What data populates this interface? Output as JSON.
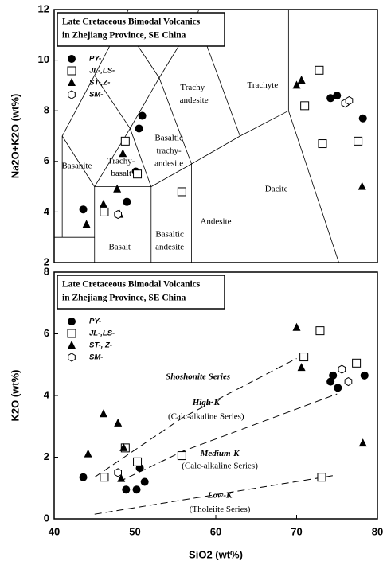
{
  "chart_data": [
    {
      "type": "scatter",
      "ylabel": "Na2O+K2O (wt%)",
      "xlim": [
        40,
        80
      ],
      "ylim": [
        2,
        12
      ],
      "yticks": [
        2,
        4,
        6,
        8,
        10,
        12
      ],
      "legend_title": [
        "Late Cretaceous Bimodal Volcanics",
        "in Zhejiang Province, SE China"
      ],
      "annotations": [
        [
          "Basanite"
        ],
        [
          "Trachy-",
          "basalt"
        ],
        [
          "Basaltic",
          "trachy-",
          "andesite"
        ],
        [
          "Trachy-",
          "andesite"
        ],
        [
          "Trachyte"
        ],
        [
          "Dacite"
        ],
        [
          "Andesite"
        ],
        [
          "Basaltic",
          "andesite"
        ],
        [
          "Basalt"
        ]
      ],
      "series": [
        {
          "name": "PY-",
          "marker": "circle",
          "color": "#000000",
          "x": [
            43.6,
            50.5,
            50.9,
            50.1,
            49.0,
            74.2,
            75.0,
            78.2
          ],
          "values": [
            4.1,
            7.3,
            7.8,
            5.6,
            4.4,
            8.5,
            8.6,
            7.7
          ]
        },
        {
          "name": "JL-,LS-",
          "marker": "square",
          "color": "#000000",
          "x": [
            46.2,
            48.8,
            50.3,
            55.8,
            71.0,
            72.8,
            73.2,
            77.6
          ],
          "values": [
            4.0,
            6.8,
            5.5,
            4.8,
            8.2,
            9.6,
            6.7,
            6.8
          ]
        },
        {
          "name": "ST-,Z-",
          "marker": "triangle",
          "color": "#000000",
          "x": [
            44.0,
            46.1,
            47.8,
            48.1,
            48.5,
            70.0,
            70.6,
            78.1
          ],
          "values": [
            3.5,
            4.3,
            4.9,
            3.9,
            6.3,
            9.0,
            9.2,
            5.0
          ]
        },
        {
          "name": "SM-",
          "marker": "hexagon",
          "color": "#000000",
          "x": [
            47.9,
            76.0,
            76.5
          ],
          "values": [
            3.9,
            8.3,
            8.4
          ]
        }
      ]
    },
    {
      "type": "scatter",
      "xlabel": "SiO2 (wt%)",
      "ylabel": "K2O (wt%)",
      "xlim": [
        40,
        80
      ],
      "xticks": [
        40,
        50,
        60,
        70,
        80
      ],
      "ylim": [
        0,
        8
      ],
      "yticks": [
        0,
        2,
        4,
        6,
        8
      ],
      "legend_title": [
        "Late Cretaceous Bimodal Volcanics",
        "in Zhejiang Province, SE China"
      ],
      "annotations": [
        [
          "Shoshonite Series"
        ],
        [
          "High-K",
          "(Calc-alkaline Series)"
        ],
        [
          "Medium-K",
          "(Calc-alkaline Series)"
        ],
        [
          "Low-K",
          "(Tholeiite Series)"
        ]
      ],
      "series": [
        {
          "name": "PY-",
          "marker": "circle",
          "color": "#000000",
          "x": [
            43.6,
            48.9,
            50.2,
            50.6,
            51.2,
            74.2,
            74.5,
            75.1,
            78.4
          ],
          "values": [
            1.35,
            0.95,
            0.95,
            1.65,
            1.2,
            4.45,
            4.65,
            4.25,
            4.65
          ]
        },
        {
          "name": "JL-,LS-",
          "marker": "square",
          "color": "#000000",
          "x": [
            46.2,
            48.8,
            50.3,
            55.8,
            70.9,
            72.9,
            73.1,
            77.4
          ],
          "values": [
            1.35,
            2.3,
            1.85,
            2.05,
            5.25,
            6.1,
            1.35,
            5.05
          ]
        },
        {
          "name": "ST-, Z-",
          "marker": "triangle",
          "color": "#000000",
          "x": [
            44.2,
            46.1,
            47.9,
            48.6,
            48.3,
            70.0,
            70.6,
            78.2
          ],
          "values": [
            2.1,
            3.4,
            3.1,
            2.3,
            1.3,
            6.2,
            4.9,
            2.45
          ]
        },
        {
          "name": "SM-",
          "marker": "hexagon",
          "color": "#000000",
          "x": [
            47.9,
            75.6,
            76.4
          ],
          "values": [
            1.5,
            4.85,
            4.45
          ]
        }
      ]
    }
  ]
}
